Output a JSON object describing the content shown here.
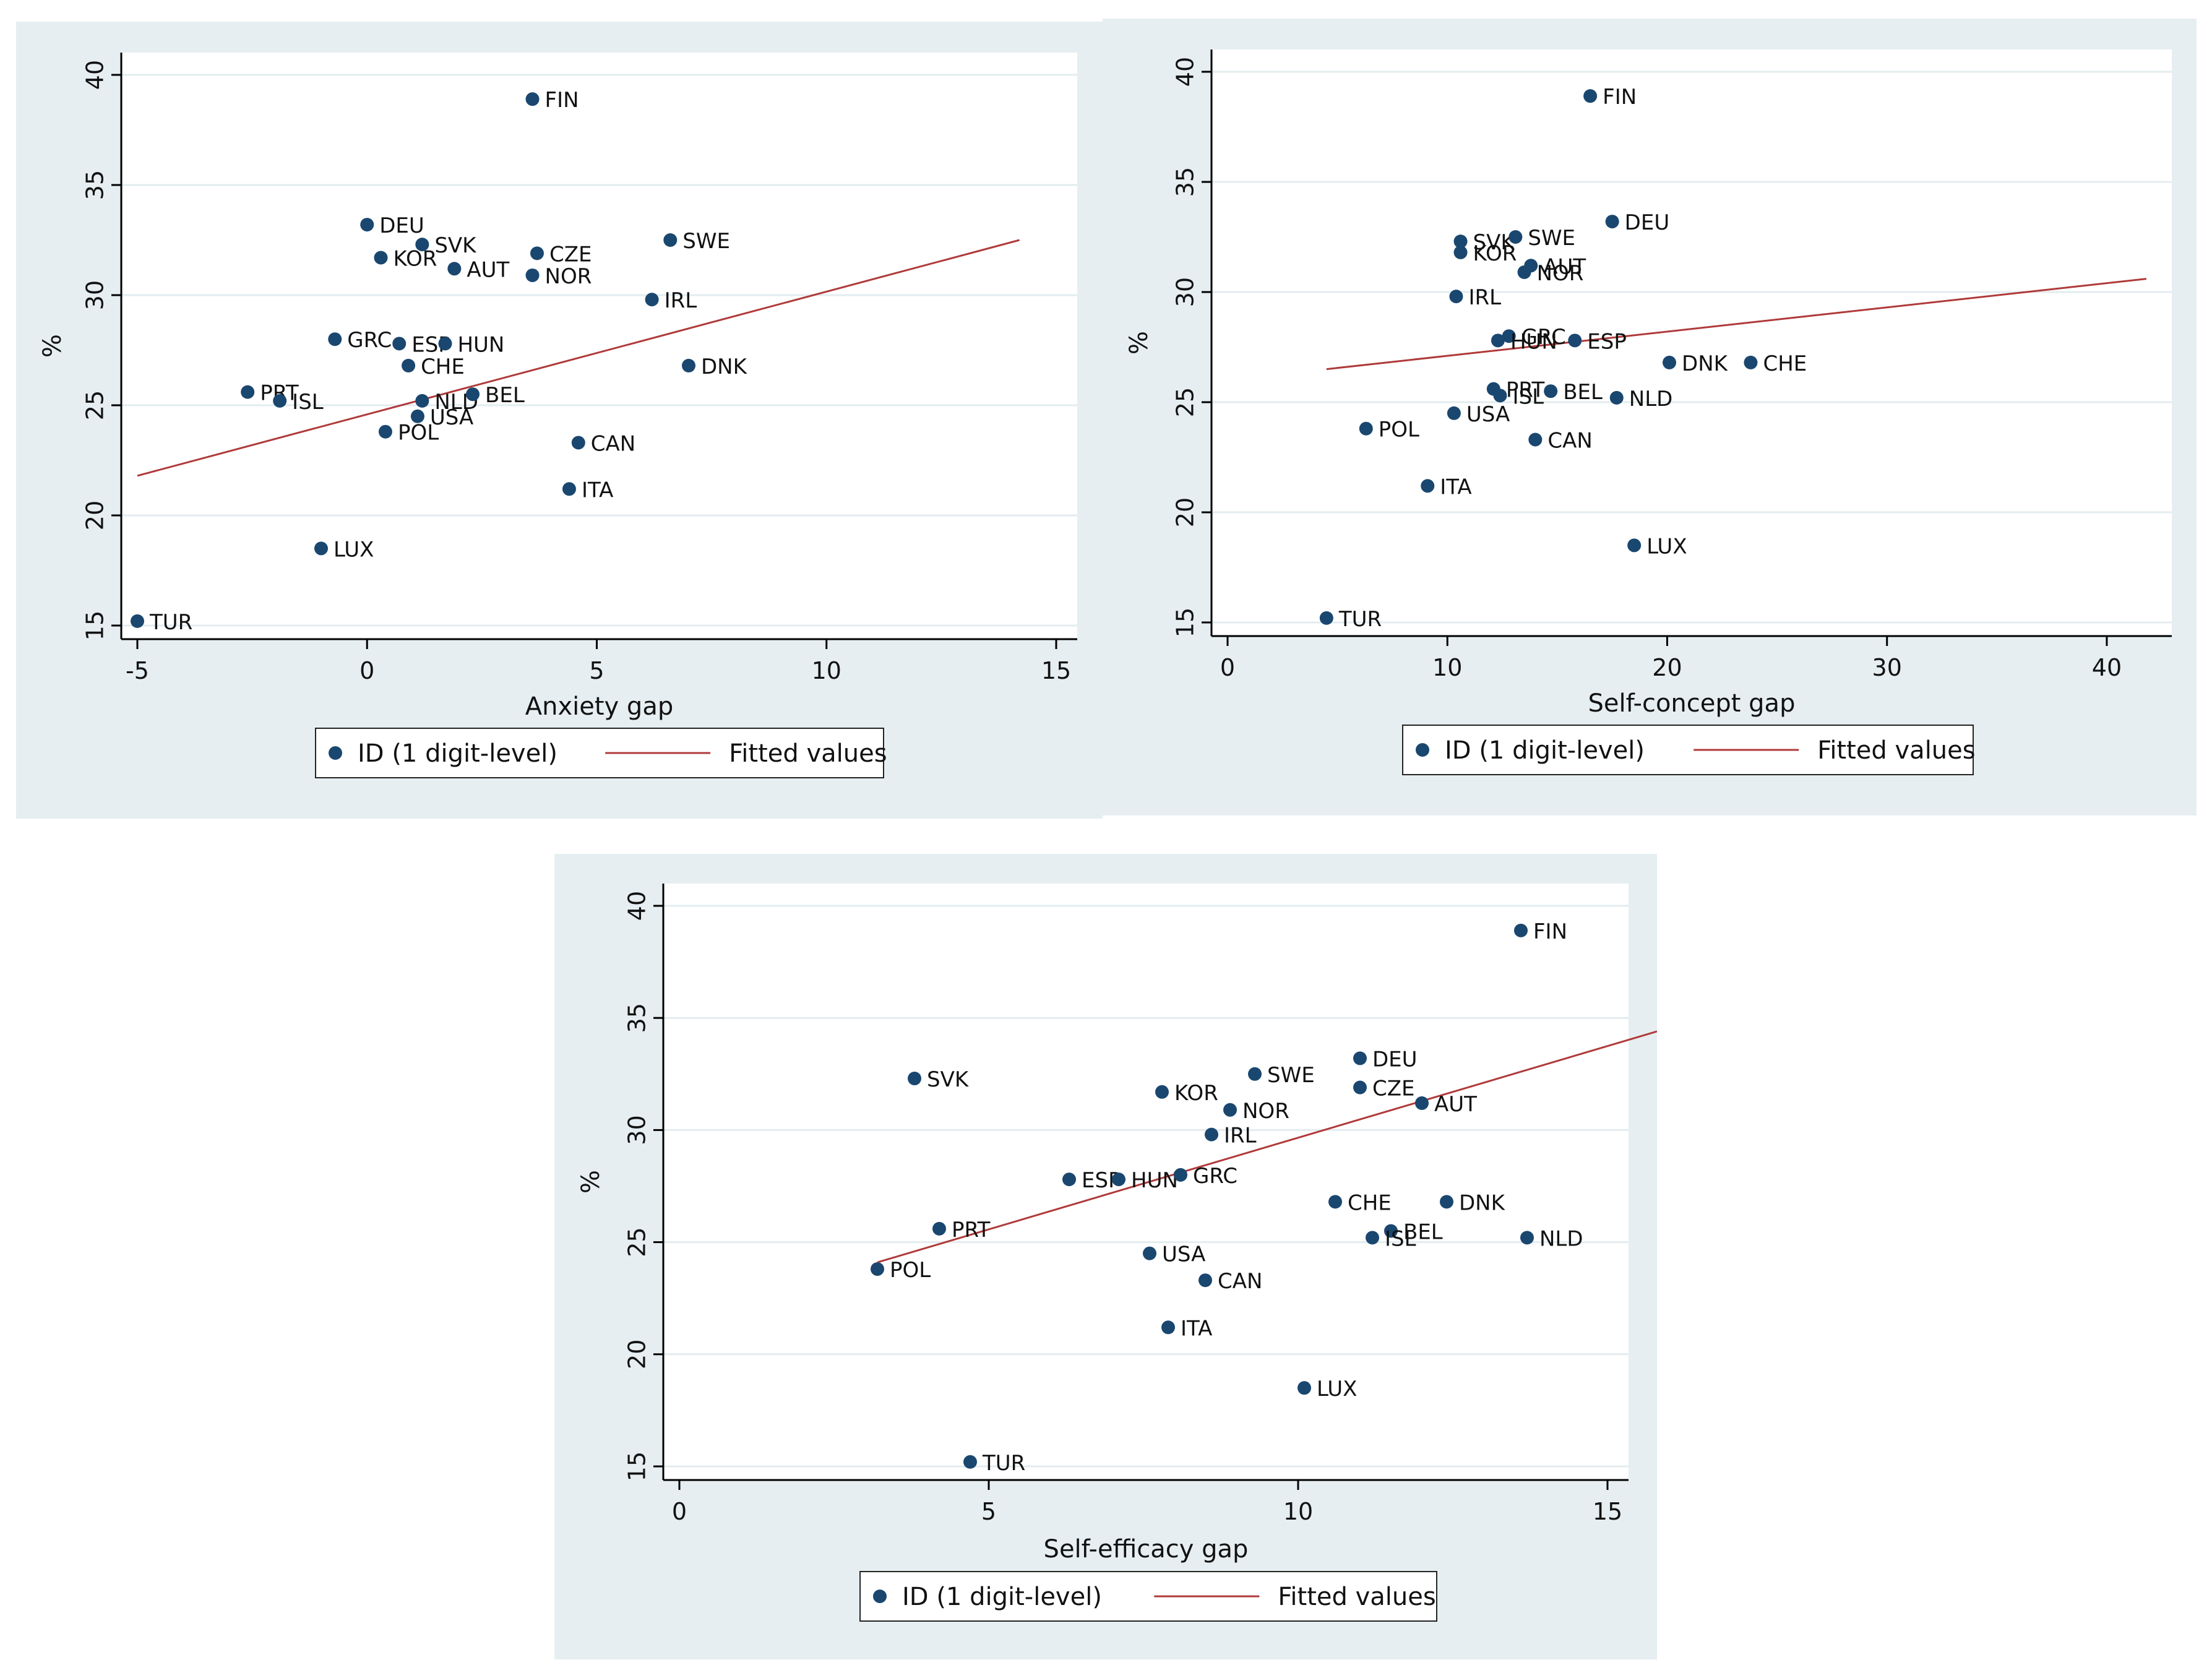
{
  "legend": {
    "scatter_label": "ID (1 digit-level)",
    "fit_label": "Fitted values"
  },
  "colors": {
    "point": "#1a476f",
    "fit_line": "#b03a3a",
    "panel_bg": "#e6eef1",
    "plot_bg": "#ffffff",
    "grid": "#e3ecef"
  },
  "chart_data": [
    {
      "type": "scatter",
      "id": "anxiety",
      "xlabel": "Anxiety gap",
      "ylabel": "%",
      "xlim": [
        -5,
        15
      ],
      "ylim": [
        15,
        40
      ],
      "xticks": [
        -5,
        0,
        5,
        10,
        15
      ],
      "yticks": [
        15,
        20,
        25,
        30,
        35,
        40
      ],
      "fit": {
        "x": [
          -5,
          14.2
        ],
        "y": [
          21.8,
          32.5
        ]
      },
      "points": [
        {
          "label": "FIN",
          "x": 3.6,
          "y": 38.9
        },
        {
          "label": "DEU",
          "x": 0.0,
          "y": 33.2
        },
        {
          "label": "SVK",
          "x": 1.2,
          "y": 32.3
        },
        {
          "label": "CZE",
          "x": 3.7,
          "y": 31.9
        },
        {
          "label": "SWE",
          "x": 6.6,
          "y": 32.5
        },
        {
          "label": "KOR",
          "x": 0.3,
          "y": 31.7
        },
        {
          "label": "AUT",
          "x": 1.9,
          "y": 31.2
        },
        {
          "label": "NOR",
          "x": 3.6,
          "y": 30.9
        },
        {
          "label": "IRL",
          "x": 6.2,
          "y": 29.8
        },
        {
          "label": "GRC",
          "x": -0.7,
          "y": 28.0
        },
        {
          "label": "ESP",
          "x": 0.7,
          "y": 27.8
        },
        {
          "label": "HUN",
          "x": 1.7,
          "y": 27.8
        },
        {
          "label": "CHE",
          "x": 0.9,
          "y": 26.8
        },
        {
          "label": "DNK",
          "x": 7.0,
          "y": 26.8
        },
        {
          "label": "PRT",
          "x": -2.6,
          "y": 25.6
        },
        {
          "label": "ISL",
          "x": -1.9,
          "y": 25.2
        },
        {
          "label": "NLD",
          "x": 1.2,
          "y": 25.2
        },
        {
          "label": "BEL",
          "x": 2.3,
          "y": 25.5
        },
        {
          "label": "USA",
          "x": 1.1,
          "y": 24.5
        },
        {
          "label": "POL",
          "x": 0.4,
          "y": 23.8
        },
        {
          "label": "CAN",
          "x": 4.6,
          "y": 23.3
        },
        {
          "label": "ITA",
          "x": 4.4,
          "y": 21.2
        },
        {
          "label": "LUX",
          "x": -1.0,
          "y": 18.5
        },
        {
          "label": "TUR",
          "x": -5.0,
          "y": 15.2
        }
      ]
    },
    {
      "type": "scatter",
      "id": "selfconcept",
      "xlabel": "Self-concept gap",
      "ylabel": "%",
      "xlim": [
        0,
        42
      ],
      "ylim": [
        15,
        40
      ],
      "xticks": [
        0,
        10,
        20,
        30,
        40
      ],
      "yticks": [
        15,
        20,
        25,
        30,
        35,
        40
      ],
      "fit": {
        "x": [
          4.5,
          41.8
        ],
        "y": [
          26.5,
          30.6
        ]
      },
      "points": [
        {
          "label": "FIN",
          "x": 16.5,
          "y": 38.9
        },
        {
          "label": "DEU",
          "x": 17.5,
          "y": 33.2
        },
        {
          "label": "SVK",
          "x": 10.6,
          "y": 32.3
        },
        {
          "label": "SWE",
          "x": 13.1,
          "y": 32.5
        },
        {
          "label": "KOR",
          "x": 10.6,
          "y": 31.8
        },
        {
          "label": "AUT",
          "x": 13.8,
          "y": 31.2
        },
        {
          "label": "NOR",
          "x": 13.5,
          "y": 30.9
        },
        {
          "label": "IRL",
          "x": 10.4,
          "y": 29.8
        },
        {
          "label": "GRC",
          "x": 12.8,
          "y": 28.0
        },
        {
          "label": "HUN",
          "x": 12.3,
          "y": 27.8
        },
        {
          "label": "ESP",
          "x": 15.8,
          "y": 27.8
        },
        {
          "label": "DNK",
          "x": 20.1,
          "y": 26.8
        },
        {
          "label": "CHE",
          "x": 23.8,
          "y": 26.8
        },
        {
          "label": "PRT",
          "x": 12.1,
          "y": 25.6
        },
        {
          "label": "ISL",
          "x": 12.4,
          "y": 25.3
        },
        {
          "label": "BEL",
          "x": 14.7,
          "y": 25.5
        },
        {
          "label": "NLD",
          "x": 17.7,
          "y": 25.2
        },
        {
          "label": "USA",
          "x": 10.3,
          "y": 24.5
        },
        {
          "label": "POL",
          "x": 6.3,
          "y": 23.8
        },
        {
          "label": "CAN",
          "x": 14.0,
          "y": 23.3
        },
        {
          "label": "ITA",
          "x": 9.1,
          "y": 21.2
        },
        {
          "label": "LUX",
          "x": 18.5,
          "y": 18.5
        },
        {
          "label": "TUR",
          "x": 4.5,
          "y": 15.2
        }
      ]
    },
    {
      "type": "scatter",
      "id": "selfefficacy",
      "xlabel": "Self-efficacy gap",
      "ylabel": "%",
      "xlim": [
        0,
        15
      ],
      "ylim": [
        15,
        40
      ],
      "xticks": [
        0,
        5,
        10,
        15
      ],
      "yticks": [
        15,
        20,
        25,
        30,
        35,
        40
      ],
      "fit": {
        "x": [
          3.2,
          15.8
        ],
        "y": [
          24.1,
          34.4
        ]
      },
      "points": [
        {
          "label": "FIN",
          "x": 13.6,
          "y": 38.9
        },
        {
          "label": "DEU",
          "x": 11.0,
          "y": 33.2
        },
        {
          "label": "SWE",
          "x": 9.3,
          "y": 32.5
        },
        {
          "label": "SVK",
          "x": 3.8,
          "y": 32.3
        },
        {
          "label": "CZE",
          "x": 11.0,
          "y": 31.9
        },
        {
          "label": "KOR",
          "x": 7.8,
          "y": 31.7
        },
        {
          "label": "NOR",
          "x": 8.9,
          "y": 30.9
        },
        {
          "label": "AUT",
          "x": 12.0,
          "y": 31.2
        },
        {
          "label": "IRL",
          "x": 8.6,
          "y": 29.8
        },
        {
          "label": "ESP",
          "x": 6.3,
          "y": 27.8
        },
        {
          "label": "HUN",
          "x": 7.1,
          "y": 27.8
        },
        {
          "label": "GRC",
          "x": 8.1,
          "y": 28.0
        },
        {
          "label": "CHE",
          "x": 10.6,
          "y": 26.8
        },
        {
          "label": "DNK",
          "x": 12.4,
          "y": 26.8
        },
        {
          "label": "PRT",
          "x": 4.2,
          "y": 25.6
        },
        {
          "label": "BEL",
          "x": 11.5,
          "y": 25.5
        },
        {
          "label": "ISL",
          "x": 11.2,
          "y": 25.2
        },
        {
          "label": "NLD",
          "x": 13.7,
          "y": 25.2
        },
        {
          "label": "POL",
          "x": 3.2,
          "y": 23.8
        },
        {
          "label": "USA",
          "x": 7.6,
          "y": 24.5
        },
        {
          "label": "CAN",
          "x": 8.5,
          "y": 23.3
        },
        {
          "label": "ITA",
          "x": 7.9,
          "y": 21.2
        },
        {
          "label": "LUX",
          "x": 10.1,
          "y": 18.5
        },
        {
          "label": "TUR",
          "x": 4.7,
          "y": 15.2
        }
      ]
    }
  ]
}
